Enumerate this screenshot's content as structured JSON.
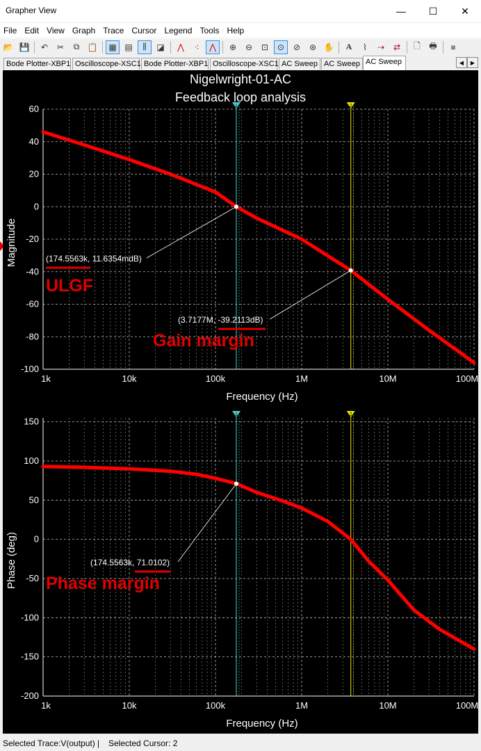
{
  "window": {
    "title": "Grapher View",
    "minimize_label": "—",
    "maximize_label": "☐",
    "close_label": "✕"
  },
  "menu": [
    "File",
    "Edit",
    "View",
    "Graph",
    "Trace",
    "Cursor",
    "Legend",
    "Tools",
    "Help"
  ],
  "toolbar_icons": [
    "open-icon",
    "save-icon",
    "undo-icon",
    "cut-icon",
    "copy-icon",
    "paste-icon",
    "grid-icon",
    "legend-icon",
    "cursors-icon",
    "reverse-colors-icon",
    "line-trace-icon",
    "dot-trace-icon",
    "line-dot-trace-icon",
    "zoom-in-icon",
    "zoom-out-icon",
    "zoom-area-icon",
    "zoom-full-icon",
    "zoom-x-icon",
    "zoom-y-icon",
    "pan-icon",
    "text-icon",
    "bode-icon",
    "export-icon",
    "print-preview-icon",
    "print-icon",
    "stop-icon"
  ],
  "tabs": [
    "Bode Plotter-XBP1",
    "Oscilloscope-XSC1",
    "Bode Plotter-XBP1",
    "Oscilloscope-XSC1",
    "AC Sweep",
    "AC Sweep",
    "AC Sweep"
  ],
  "active_tab": 6,
  "plot": {
    "title_line1": "Nigelwright-01-AC",
    "title_line2": "Feedback loop analysis",
    "trace_color": "#ff0000",
    "cursor1_color": "#4fd0d0",
    "cursor2_color": "#e8e800",
    "cursor1_label": "1",
    "cursor2_label": "2",
    "annotation_color": "#e00000"
  },
  "chart_data": [
    {
      "type": "line",
      "xlabel": "Frequency (Hz)",
      "ylabel": "Magnitude",
      "xscale": "log",
      "xlim": [
        1000,
        100000000
      ],
      "ylim": [
        -100,
        60
      ],
      "yticks": [
        60,
        40,
        20,
        0,
        -20,
        -40,
        -60,
        -80,
        -100
      ],
      "xticks": [
        "1k",
        "10k",
        "100k",
        "1M",
        "10M",
        "100M"
      ],
      "grid": true,
      "series": [
        {
          "x": [
            1000,
            3000,
            10000,
            30000,
            100000,
            174556,
            300000,
            1000000,
            3717700,
            10000000,
            30000000,
            100000000
          ],
          "y": [
            46,
            38,
            29,
            20,
            9,
            0,
            -7,
            -20,
            -39.2,
            -57,
            -76,
            -96
          ]
        }
      ],
      "cursors": [
        174556,
        3717700
      ],
      "cursor_readouts": [
        "(174.5563k, 11.6354mdB)",
        "(3.7177M, -39.2113dB)"
      ],
      "annotations": [
        "ULGF",
        "Gain margin"
      ]
    },
    {
      "type": "line",
      "xlabel": "Frequency (Hz)",
      "ylabel": "Phase (deg)",
      "xscale": "log",
      "xlim": [
        1000,
        100000000
      ],
      "ylim": [
        -200,
        155
      ],
      "yticks": [
        150,
        100,
        50,
        0,
        -50,
        -100,
        -150,
        -200
      ],
      "xticks": [
        "1k",
        "10k",
        "100k",
        "1M",
        "10M",
        "100M"
      ],
      "grid": true,
      "series": [
        {
          "x": [
            1000,
            3000,
            10000,
            30000,
            60000,
            100000,
            174556,
            300000,
            600000,
            1000000,
            2000000,
            3717700,
            6000000,
            10000000,
            20000000,
            40000000,
            100000000
          ],
          "y": [
            93,
            92,
            90,
            87,
            83,
            78,
            71,
            60,
            49,
            40,
            23,
            0,
            -28,
            -52,
            -90,
            -115,
            -140
          ]
        }
      ],
      "cursors": [
        174556,
        3717700
      ],
      "cursor_readouts": [
        "(174.5563k, 71.0102)"
      ],
      "annotations": [
        "Phase margin"
      ]
    }
  ],
  "status": {
    "trace": "Selected Trace:V(output)",
    "separator": "|",
    "cursor": "Selected Cursor: 2"
  }
}
